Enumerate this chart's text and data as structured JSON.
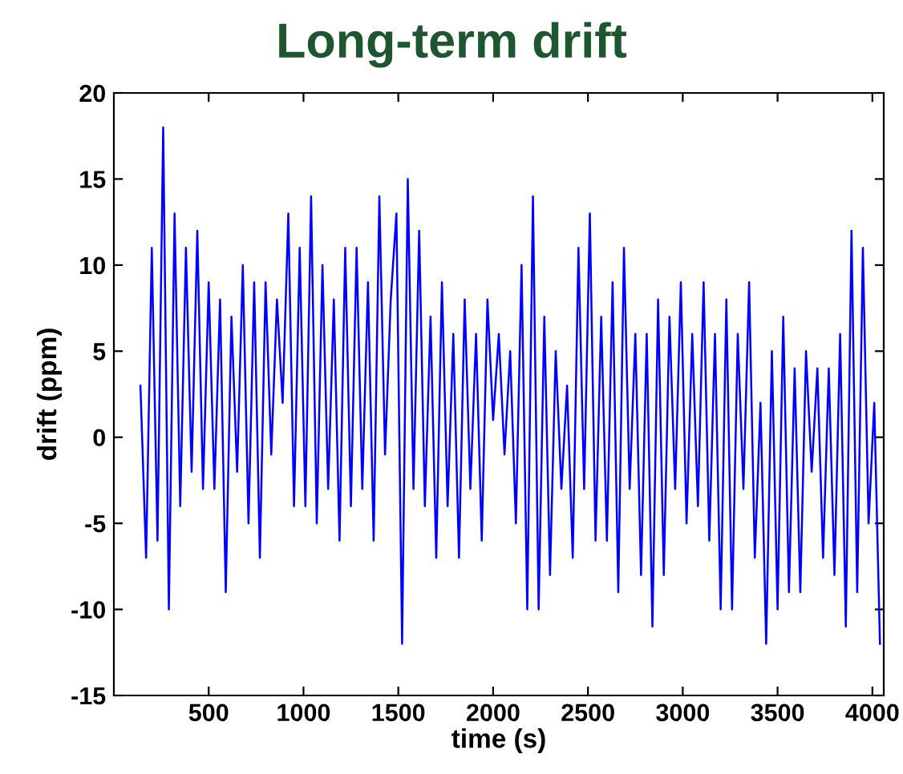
{
  "chart_data": {
    "type": "line",
    "title": "Long-term drift",
    "xlabel": "time (s)",
    "ylabel": "drift (ppm)",
    "xlim": [
      0,
      4060
    ],
    "ylim": [
      -15,
      20
    ],
    "xticks": [
      500,
      1000,
      1500,
      2000,
      2500,
      3000,
      3500,
      4000
    ],
    "yticks": [
      -15,
      -10,
      -5,
      0,
      5,
      10,
      15,
      20
    ],
    "marker": "none",
    "line_style": "solid",
    "series": [
      {
        "color": "#0000ff",
        "x": [
          140,
          170,
          200,
          230,
          260,
          290,
          320,
          350,
          380,
          410,
          440,
          470,
          500,
          530,
          560,
          590,
          620,
          650,
          680,
          710,
          740,
          770,
          800,
          830,
          860,
          890,
          920,
          950,
          980,
          1010,
          1040,
          1070,
          1100,
          1130,
          1160,
          1190,
          1220,
          1250,
          1280,
          1310,
          1340,
          1370,
          1400,
          1430,
          1460,
          1490,
          1520,
          1550,
          1580,
          1610,
          1640,
          1670,
          1700,
          1730,
          1760,
          1790,
          1820,
          1850,
          1880,
          1910,
          1940,
          1970,
          2000,
          2030,
          2060,
          2090,
          2120,
          2150,
          2180,
          2210,
          2240,
          2270,
          2300,
          2330,
          2360,
          2390,
          2420,
          2450,
          2480,
          2510,
          2540,
          2570,
          2600,
          2630,
          2660,
          2690,
          2720,
          2750,
          2780,
          2810,
          2840,
          2870,
          2900,
          2930,
          2960,
          2990,
          3020,
          3050,
          3080,
          3110,
          3140,
          3170,
          3200,
          3230,
          3260,
          3290,
          3320,
          3350,
          3380,
          3410,
          3440,
          3470,
          3500,
          3530,
          3560,
          3590,
          3620,
          3650,
          3680,
          3710,
          3740,
          3770,
          3800,
          3830,
          3860,
          3890,
          3920,
          3950,
          3980,
          4010,
          4040
        ],
        "values": [
          3,
          -7,
          11,
          -6,
          18,
          -10,
          13,
          -4,
          11,
          -2,
          12,
          -3,
          9,
          -3,
          8,
          -9,
          7,
          -2,
          10,
          -5,
          9,
          -7,
          9,
          -1,
          8,
          2,
          13,
          -4,
          11,
          -4,
          14,
          -5,
          10,
          -3,
          8,
          -6,
          11,
          -4,
          11,
          -3,
          9,
          -6,
          14,
          -1,
          8,
          13,
          -12,
          15,
          -3,
          12,
          -4,
          7,
          -7,
          9,
          -4,
          6,
          -7,
          8,
          -3,
          6,
          -6,
          8,
          1,
          6,
          -1,
          5,
          -5,
          10,
          -10,
          14,
          -10,
          7,
          -8,
          5,
          -3,
          3,
          -7,
          11,
          -3,
          13,
          -6,
          7,
          -6,
          9,
          -9,
          11,
          -3,
          6,
          -8,
          6,
          -11,
          8,
          -8,
          7,
          -3,
          9,
          -5,
          6,
          -4,
          9,
          -6,
          6,
          -10,
          8,
          -10,
          6,
          -3,
          9,
          -7,
          2,
          -12,
          5,
          -10,
          7,
          -9,
          4,
          -9,
          5,
          -2,
          4,
          -7,
          4,
          -8,
          6,
          -11,
          12,
          -9,
          11,
          -5,
          2,
          -12
        ]
      }
    ]
  }
}
